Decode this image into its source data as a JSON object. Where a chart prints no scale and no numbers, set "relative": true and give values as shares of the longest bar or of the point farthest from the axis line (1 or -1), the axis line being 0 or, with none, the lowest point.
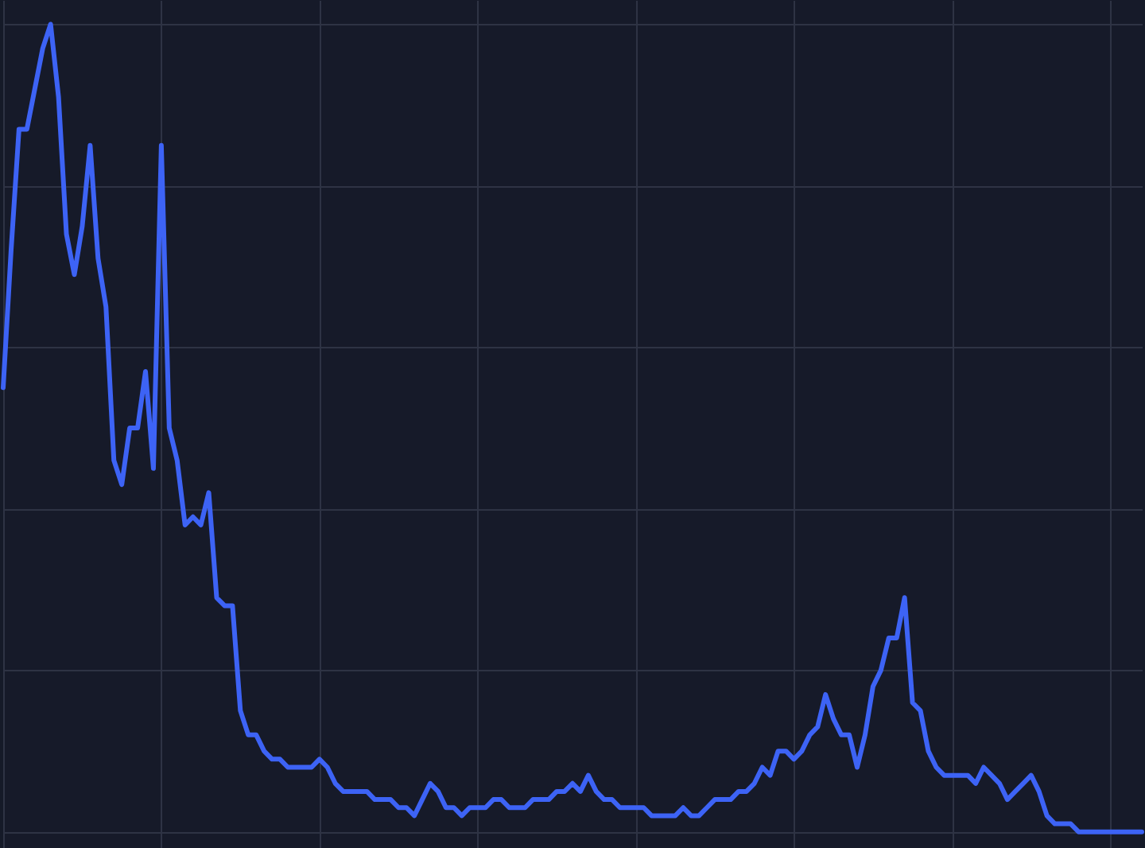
{
  "chart_data": {
    "type": "line",
    "relative": true,
    "grid": true,
    "marker": "none",
    "line_style": "solid",
    "categories": [
      null,
      null,
      null,
      null,
      null,
      null,
      null,
      null,
      null,
      null,
      null,
      null,
      null,
      null,
      null,
      null,
      null,
      null,
      null,
      null,
      null,
      null,
      null,
      null,
      null,
      null,
      null,
      null,
      null,
      null,
      null,
      null,
      null,
      null,
      null,
      null,
      null,
      null,
      null,
      null,
      null,
      null,
      null,
      null,
      null,
      null,
      null,
      null,
      null,
      null,
      null,
      null,
      null,
      null,
      null,
      null,
      null,
      null,
      null,
      null,
      null,
      null,
      null,
      null,
      null,
      null,
      null,
      null,
      null,
      null,
      null,
      null,
      null,
      null,
      null,
      null,
      null,
      null,
      null,
      null,
      null,
      null,
      null,
      null,
      null,
      null,
      null,
      null,
      null,
      null,
      null,
      null,
      null,
      null,
      null,
      null,
      null,
      null,
      null,
      null,
      null,
      null,
      null,
      null,
      null,
      null,
      null,
      null,
      null,
      null,
      null,
      null,
      null,
      null,
      null,
      null,
      null,
      null,
      null,
      null,
      null,
      null,
      null,
      null,
      null,
      null,
      null,
      null,
      null,
      null,
      null,
      null,
      null,
      null,
      null,
      null,
      null,
      null,
      null,
      null,
      null,
      null,
      null,
      null,
      null
    ],
    "series": [
      {
        "color": "#3d63f5",
        "values": [
          0.55,
          0.72,
          0.87,
          0.87,
          0.92,
          0.97,
          1.0,
          0.91,
          0.74,
          0.69,
          0.75,
          0.85,
          0.71,
          0.65,
          0.46,
          0.43,
          0.5,
          0.5,
          0.57,
          0.45,
          0.85,
          0.5,
          0.46,
          0.38,
          0.39,
          0.38,
          0.42,
          0.29,
          0.28,
          0.28,
          0.15,
          0.12,
          0.12,
          0.1,
          0.09,
          0.09,
          0.08,
          0.08,
          0.08,
          0.08,
          0.09,
          0.08,
          0.06,
          0.05,
          0.05,
          0.05,
          0.05,
          0.04,
          0.04,
          0.04,
          0.03,
          0.03,
          0.02,
          0.04,
          0.06,
          0.05,
          0.03,
          0.03,
          0.02,
          0.03,
          0.03,
          0.03,
          0.04,
          0.04,
          0.03,
          0.03,
          0.03,
          0.04,
          0.04,
          0.04,
          0.05,
          0.05,
          0.06,
          0.05,
          0.07,
          0.05,
          0.04,
          0.04,
          0.03,
          0.03,
          0.03,
          0.03,
          0.02,
          0.02,
          0.02,
          0.02,
          0.03,
          0.02,
          0.02,
          0.03,
          0.04,
          0.04,
          0.04,
          0.05,
          0.05,
          0.06,
          0.08,
          0.07,
          0.1,
          0.1,
          0.09,
          0.1,
          0.12,
          0.13,
          0.17,
          0.14,
          0.12,
          0.12,
          0.08,
          0.12,
          0.18,
          0.2,
          0.24,
          0.24,
          0.29,
          0.16,
          0.15,
          0.1,
          0.08,
          0.07,
          0.07,
          0.07,
          0.07,
          0.06,
          0.08,
          0.07,
          0.06,
          0.04,
          0.05,
          0.06,
          0.07,
          0.05,
          0.02,
          0.01,
          0.01,
          0.01,
          0.0,
          0.0,
          0.0,
          0.0,
          0.0,
          0.0,
          0,
          0,
          0
        ]
      }
    ]
  }
}
